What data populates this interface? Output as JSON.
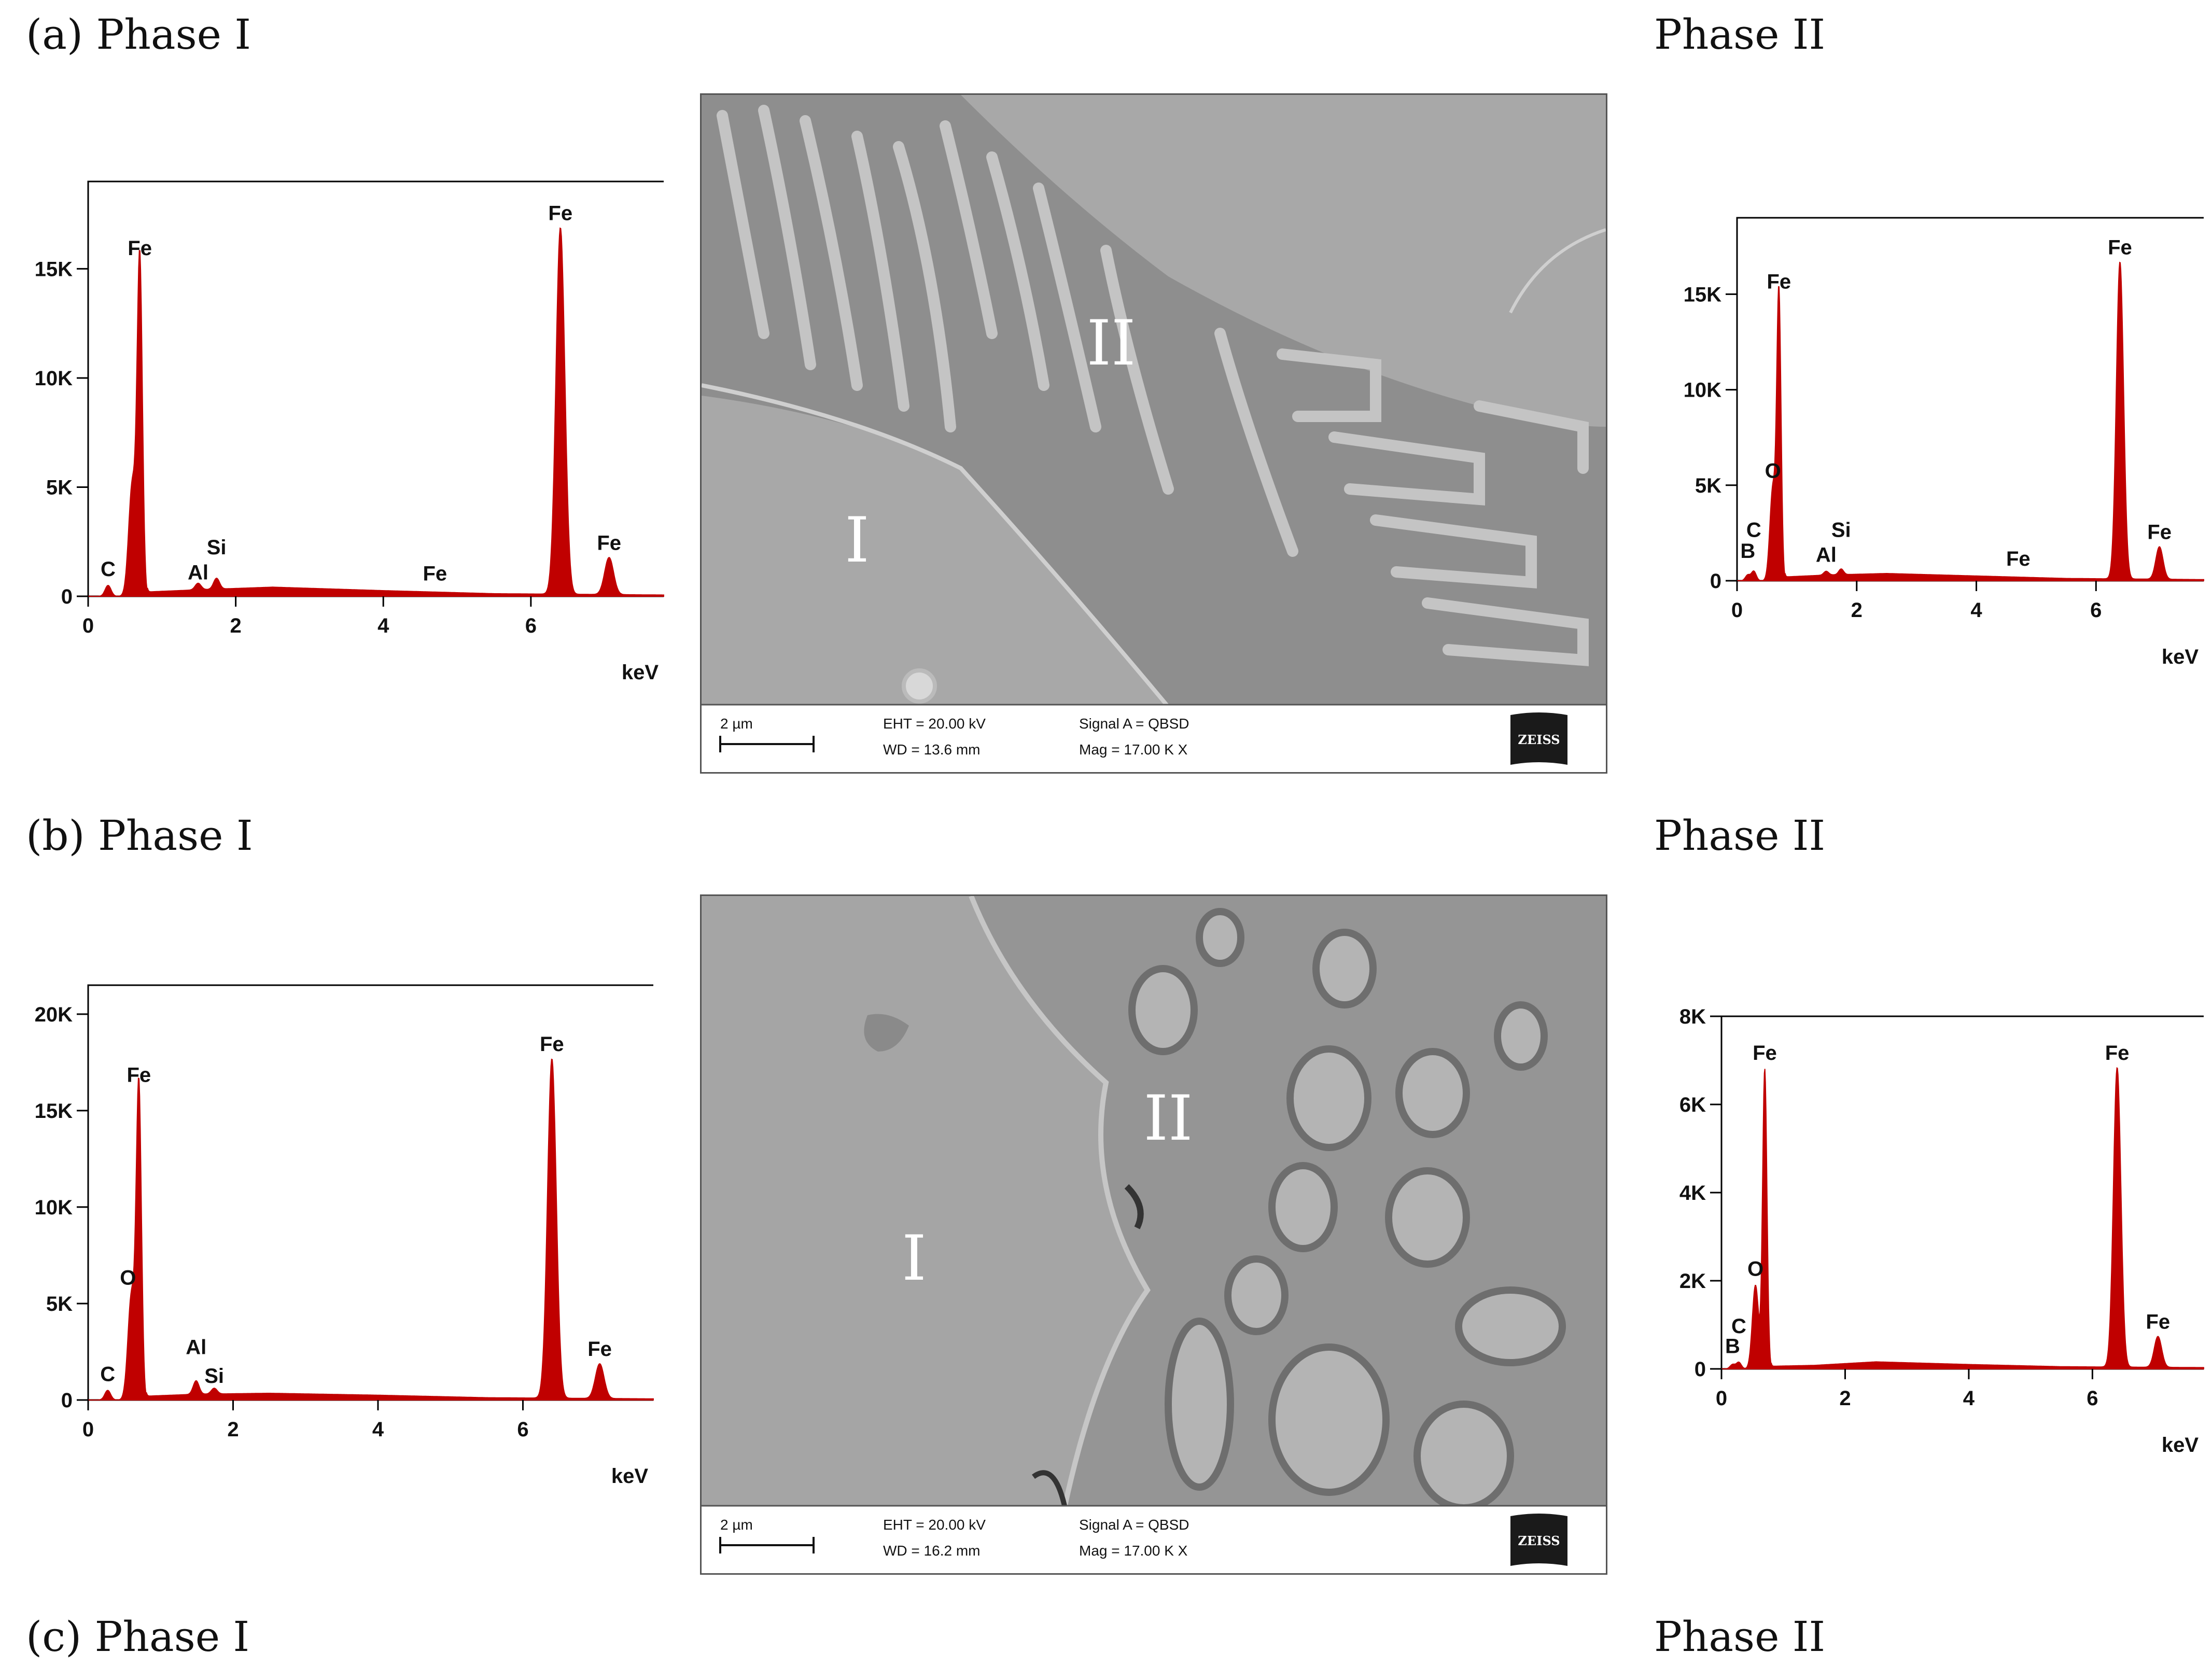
{
  "figure": {
    "rows": [
      {
        "left_caption": "(a) Phase I",
        "right_caption": "Phase II",
        "sem": {
          "phase_i_label": "I",
          "phase_ii_label": "II",
          "scalebar": "2 µm",
          "eht": "EHT = 20.00 kV",
          "wd": "WD = 13.6 mm",
          "signal": "Signal A = QBSD",
          "mag": "Mag =  17.00 K X",
          "logo": "ZEISS"
        }
      },
      {
        "left_caption": "(b) Phase I",
        "right_caption": "Phase II",
        "sem": {
          "phase_i_label": "I",
          "phase_ii_label": "II",
          "scalebar": "2 µm",
          "eht": "EHT = 20.00 kV",
          "wd": "WD = 16.2 mm",
          "signal": "Signal A = QBSD",
          "mag": "Mag =  17.00 K X",
          "logo": "ZEISS"
        }
      },
      {
        "left_caption": "(c) Phase I",
        "right_caption": "Phase II"
      }
    ]
  },
  "chart_data": [
    {
      "type": "line",
      "xlabel": "keV",
      "ylabel": "",
      "xlim": [
        0,
        7.8
      ],
      "ylim": [
        0,
        19000
      ],
      "xticks": [
        0,
        2,
        4,
        6
      ],
      "yticks": [
        0,
        5000,
        10000,
        15000
      ],
      "ytick_labels": [
        "0",
        "5K",
        "10K",
        "15K"
      ],
      "peaks": [
        {
          "x": 0.27,
          "y": 500,
          "w": 0.04
        },
        {
          "x": 0.6,
          "y": 5200,
          "w": 0.05
        },
        {
          "x": 0.7,
          "y": 15200,
          "w": 0.035
        },
        {
          "x": 1.49,
          "y": 300,
          "w": 0.04
        },
        {
          "x": 1.74,
          "y": 500,
          "w": 0.04
        },
        {
          "x": 6.4,
          "y": 16800,
          "w": 0.06
        },
        {
          "x": 7.06,
          "y": 1700,
          "w": 0.06
        }
      ],
      "baseline": [
        [
          0.8,
          200
        ],
        [
          1.5,
          300
        ],
        [
          2.5,
          420
        ],
        [
          4,
          260
        ],
        [
          5.5,
          120
        ],
        [
          7.8,
          60
        ]
      ],
      "labels": [
        {
          "text": "C",
          "x": 0.27,
          "y": 500
        },
        {
          "text": "Fe",
          "x": 0.7,
          "y": 15200
        },
        {
          "text": "Al",
          "x": 1.49,
          "y": 350
        },
        {
          "text": "Si",
          "x": 1.74,
          "y": 1500
        },
        {
          "text": "Fe",
          "x": 4.7,
          "y": 300
        },
        {
          "text": "Fe",
          "x": 6.4,
          "y": 16800
        },
        {
          "text": "Fe",
          "x": 7.06,
          "y": 1700
        }
      ],
      "color": "#c00000"
    },
    {
      "type": "line",
      "xlabel": "keV",
      "ylabel": "",
      "xlim": [
        0,
        7.8
      ],
      "ylim": [
        0,
        19000
      ],
      "xticks": [
        0,
        2,
        4,
        6
      ],
      "yticks": [
        0,
        5000,
        10000,
        15000
      ],
      "ytick_labels": [
        "0",
        "5K",
        "10K",
        "15K"
      ],
      "peaks": [
        {
          "x": 0.18,
          "y": 300,
          "w": 0.04
        },
        {
          "x": 0.28,
          "y": 500,
          "w": 0.04
        },
        {
          "x": 0.6,
          "y": 4900,
          "w": 0.05
        },
        {
          "x": 0.7,
          "y": 14800,
          "w": 0.035
        },
        {
          "x": 1.49,
          "y": 200,
          "w": 0.04
        },
        {
          "x": 1.74,
          "y": 300,
          "w": 0.04
        },
        {
          "x": 6.4,
          "y": 16600,
          "w": 0.06
        },
        {
          "x": 7.06,
          "y": 1700,
          "w": 0.06
        }
      ],
      "baseline": [
        [
          0.8,
          200
        ],
        [
          1.5,
          300
        ],
        [
          2.5,
          380
        ],
        [
          4,
          250
        ],
        [
          5.5,
          120
        ],
        [
          7.8,
          60
        ]
      ],
      "labels": [
        {
          "text": "B",
          "x": 0.18,
          "y": 700
        },
        {
          "text": "C",
          "x": 0.28,
          "y": 1800
        },
        {
          "text": "O",
          "x": 0.6,
          "y": 4900
        },
        {
          "text": "Fe",
          "x": 0.7,
          "y": 14800
        },
        {
          "text": "Al",
          "x": 1.49,
          "y": 500
        },
        {
          "text": "Si",
          "x": 1.74,
          "y": 1800
        },
        {
          "text": "Fe",
          "x": 4.7,
          "y": 300
        },
        {
          "text": "Fe",
          "x": 6.4,
          "y": 16600
        },
        {
          "text": "Fe",
          "x": 7.06,
          "y": 1700
        }
      ],
      "color": "#c00000"
    },
    {
      "type": "line",
      "xlabel": "keV",
      "ylabel": "",
      "xlim": [
        0,
        7.8
      ],
      "ylim": [
        0,
        21500
      ],
      "xticks": [
        0,
        2,
        4,
        6
      ],
      "yticks": [
        0,
        5000,
        10000,
        15000,
        20000
      ],
      "ytick_labels": [
        "0",
        "5K",
        "10K",
        "15K",
        "20K"
      ],
      "peaks": [
        {
          "x": 0.27,
          "y": 500,
          "w": 0.04
        },
        {
          "x": 0.6,
          "y": 5500,
          "w": 0.05
        },
        {
          "x": 0.7,
          "y": 16000,
          "w": 0.035
        },
        {
          "x": 1.49,
          "y": 700,
          "w": 0.04
        },
        {
          "x": 1.74,
          "y": 300,
          "w": 0.04
        },
        {
          "x": 6.4,
          "y": 17600,
          "w": 0.06
        },
        {
          "x": 7.06,
          "y": 1800,
          "w": 0.06
        }
      ],
      "baseline": [
        [
          0.8,
          200
        ],
        [
          1.5,
          300
        ],
        [
          2.5,
          350
        ],
        [
          4,
          250
        ],
        [
          5.5,
          120
        ],
        [
          7.8,
          60
        ]
      ],
      "labels": [
        {
          "text": "C",
          "x": 0.27,
          "y": 500
        },
        {
          "text": "O",
          "x": 0.55,
          "y": 5500
        },
        {
          "text": "Fe",
          "x": 0.7,
          "y": 16000
        },
        {
          "text": "Al",
          "x": 1.49,
          "y": 1900
        },
        {
          "text": "Si",
          "x": 1.74,
          "y": 400
        },
        {
          "text": "Fe",
          "x": 6.4,
          "y": 17600
        },
        {
          "text": "Fe",
          "x": 7.06,
          "y": 1800
        }
      ],
      "color": "#c00000"
    },
    {
      "type": "line",
      "xlabel": "keV",
      "ylabel": "",
      "xlim": [
        0,
        7.8
      ],
      "ylim": [
        0,
        8000
      ],
      "xticks": [
        0,
        2,
        4,
        6
      ],
      "yticks": [
        0,
        2000,
        4000,
        6000,
        8000
      ],
      "ytick_labels": [
        "0",
        "2K",
        "4K",
        "6K",
        "8K"
      ],
      "peaks": [
        {
          "x": 0.18,
          "y": 100,
          "w": 0.04
        },
        {
          "x": 0.28,
          "y": 150,
          "w": 0.04
        },
        {
          "x": 0.55,
          "y": 1900,
          "w": 0.05
        },
        {
          "x": 0.7,
          "y": 6800,
          "w": 0.035
        },
        {
          "x": 6.4,
          "y": 6800,
          "w": 0.06
        },
        {
          "x": 7.06,
          "y": 700,
          "w": 0.06
        }
      ],
      "baseline": [
        [
          0.8,
          60
        ],
        [
          1.5,
          80
        ],
        [
          2.5,
          160
        ],
        [
          4,
          100
        ],
        [
          5.5,
          50
        ],
        [
          7.8,
          30
        ]
      ],
      "labels": [
        {
          "text": "B",
          "x": 0.18,
          "y": 150
        },
        {
          "text": "C",
          "x": 0.28,
          "y": 600
        },
        {
          "text": "O",
          "x": 0.55,
          "y": 1900
        },
        {
          "text": "Fe",
          "x": 0.7,
          "y": 6800
        },
        {
          "text": "Fe",
          "x": 6.4,
          "y": 6800
        },
        {
          "text": "Fe",
          "x": 7.06,
          "y": 700
        }
      ],
      "color": "#c00000"
    }
  ]
}
